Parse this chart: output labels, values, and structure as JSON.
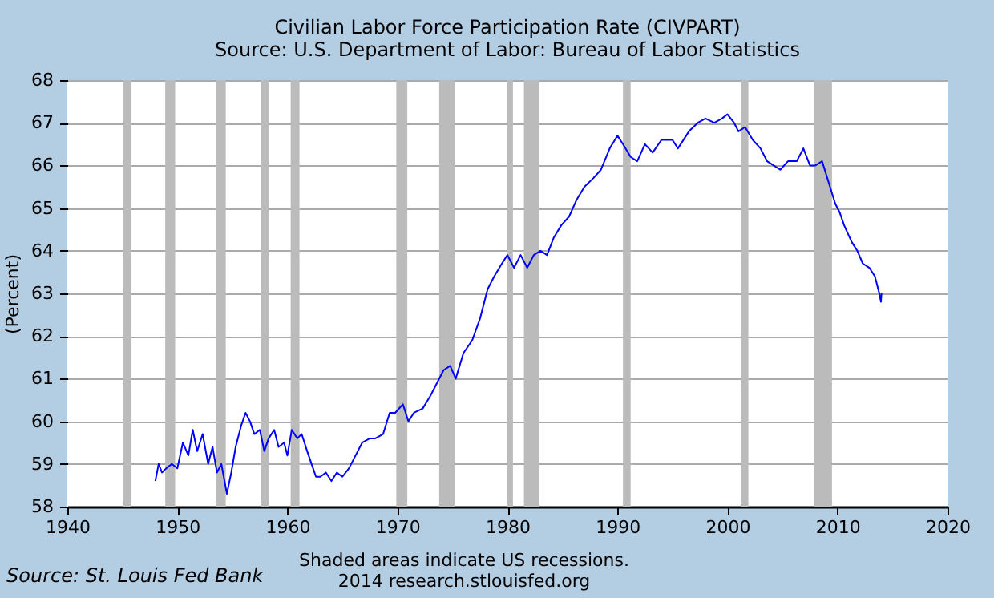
{
  "chart_data": {
    "type": "line",
    "title": "Civilian Labor Force Participation Rate (CIVPART)",
    "subtitle": "Source: U.S. Department of Labor: Bureau of Labor Statistics",
    "ylabel": "(Percent)",
    "x": [
      1948.0,
      1948.3,
      1948.6,
      1949.0,
      1949.5,
      1950.0,
      1950.5,
      1951.0,
      1951.4,
      1951.8,
      1952.3,
      1952.8,
      1953.2,
      1953.6,
      1954.0,
      1954.5,
      1954.9,
      1955.3,
      1955.8,
      1956.2,
      1956.6,
      1957.0,
      1957.5,
      1957.9,
      1958.3,
      1958.8,
      1959.2,
      1959.7,
      1960.0,
      1960.4,
      1960.9,
      1961.3,
      1961.8,
      1962.2,
      1962.6,
      1963.0,
      1963.5,
      1964.0,
      1964.5,
      1965.0,
      1965.6,
      1966.2,
      1966.8,
      1967.5,
      1968.0,
      1968.7,
      1969.3,
      1969.8,
      1970.5,
      1971.0,
      1971.5,
      1972.3,
      1973.0,
      1973.6,
      1974.2,
      1974.8,
      1975.3,
      1976.0,
      1976.8,
      1977.5,
      1978.2,
      1978.8,
      1979.5,
      1980.0,
      1980.6,
      1981.2,
      1981.8,
      1982.4,
      1983.0,
      1983.6,
      1984.2,
      1984.9,
      1985.6,
      1986.3,
      1987.0,
      1987.8,
      1988.5,
      1989.3,
      1990.0,
      1990.5,
      1991.2,
      1991.8,
      1992.5,
      1993.2,
      1994.0,
      1995.0,
      1995.5,
      1996.5,
      1997.3,
      1998.0,
      1998.8,
      1999.5,
      2000.0,
      2000.6,
      2001.0,
      2001.6,
      2002.3,
      2003.0,
      2003.6,
      2004.2,
      2004.8,
      2005.5,
      2006.3,
      2006.9,
      2007.5,
      2008.0,
      2008.6,
      2009.2,
      2009.8,
      2010.2,
      2010.6,
      2011.3,
      2011.8,
      2012.3,
      2012.9,
      2013.4,
      2013.8,
      2013.95,
      2014.0
    ],
    "series": [
      {
        "color": "#0000ff",
        "values": [
          58.6,
          59.0,
          58.8,
          58.9,
          59.0,
          58.9,
          59.5,
          59.2,
          59.8,
          59.3,
          59.7,
          59.0,
          59.4,
          58.8,
          59.0,
          58.3,
          58.8,
          59.4,
          59.9,
          60.2,
          60.0,
          59.7,
          59.8,
          59.3,
          59.6,
          59.8,
          59.4,
          59.5,
          59.2,
          59.8,
          59.6,
          59.7,
          59.3,
          59.0,
          58.7,
          58.7,
          58.8,
          58.6,
          58.8,
          58.7,
          58.9,
          59.2,
          59.5,
          59.6,
          59.6,
          59.7,
          60.2,
          60.2,
          60.4,
          60.0,
          60.2,
          60.3,
          60.6,
          60.9,
          61.2,
          61.3,
          61.0,
          61.6,
          61.9,
          62.4,
          63.1,
          63.4,
          63.7,
          63.9,
          63.6,
          63.9,
          63.6,
          63.9,
          64.0,
          63.9,
          64.3,
          64.6,
          64.8,
          65.2,
          65.5,
          65.7,
          65.9,
          66.4,
          66.7,
          66.5,
          66.2,
          66.1,
          66.5,
          66.3,
          66.6,
          66.6,
          66.4,
          66.8,
          67.0,
          67.1,
          67.0,
          67.1,
          67.2,
          67.0,
          66.8,
          66.9,
          66.6,
          66.4,
          66.1,
          66.0,
          65.9,
          66.1,
          66.1,
          66.4,
          66.0,
          66.0,
          66.1,
          65.6,
          65.1,
          64.9,
          64.6,
          64.2,
          64.0,
          63.7,
          63.6,
          63.4,
          63.0,
          62.8,
          63.0
        ]
      }
    ],
    "xlim": [
      1940,
      2020
    ],
    "xticks": [
      1940,
      1950,
      1960,
      1970,
      1980,
      1990,
      2000,
      2010,
      2020
    ],
    "ylim": [
      58,
      68
    ],
    "yticks": [
      58,
      59,
      60,
      61,
      62,
      63,
      64,
      65,
      66,
      67,
      68
    ],
    "grid": "y",
    "bands": [
      {
        "axis": "x",
        "from": 1945.1,
        "to": 1945.8,
        "color": "#bbbbbb"
      },
      {
        "axis": "x",
        "from": 1948.9,
        "to": 1949.8,
        "color": "#bbbbbb"
      },
      {
        "axis": "x",
        "from": 1953.5,
        "to": 1954.4,
        "color": "#bbbbbb"
      },
      {
        "axis": "x",
        "from": 1957.6,
        "to": 1958.3,
        "color": "#bbbbbb"
      },
      {
        "axis": "x",
        "from": 1960.3,
        "to": 1961.1,
        "color": "#bbbbbb"
      },
      {
        "axis": "x",
        "from": 1969.9,
        "to": 1970.9,
        "color": "#bbbbbb"
      },
      {
        "axis": "x",
        "from": 1973.8,
        "to": 1975.2,
        "color": "#bbbbbb"
      },
      {
        "axis": "x",
        "from": 1980.0,
        "to": 1980.5,
        "color": "#bbbbbb"
      },
      {
        "axis": "x",
        "from": 1981.5,
        "to": 1982.9,
        "color": "#bbbbbb"
      },
      {
        "axis": "x",
        "from": 1990.5,
        "to": 1991.2,
        "color": "#bbbbbb"
      },
      {
        "axis": "x",
        "from": 2001.2,
        "to": 2001.9,
        "color": "#bbbbbb"
      },
      {
        "axis": "x",
        "from": 2007.9,
        "to": 2009.5,
        "color": "#bbbbbb"
      }
    ],
    "annotations": [
      "Source: St. Louis Fed Bank",
      "Shaded areas indicate US recessions.",
      "2014 research.stlouisfed.org"
    ],
    "tick_labels": true
  }
}
